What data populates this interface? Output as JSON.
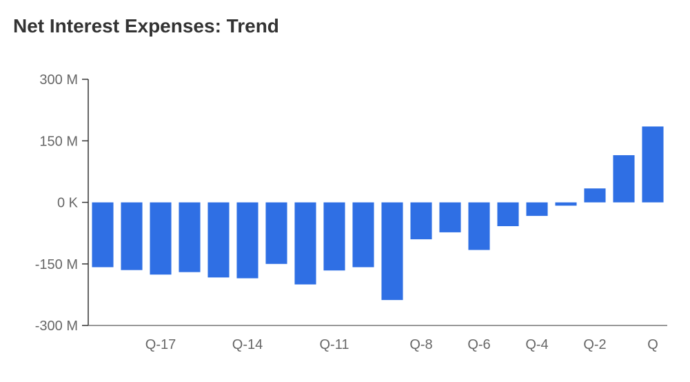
{
  "chart_data": {
    "type": "bar",
    "title": "Net Interest Expenses: Trend",
    "xlabel": "",
    "ylabel": "",
    "categories": [
      "Q-19",
      "Q-18",
      "Q-17",
      "Q-16",
      "Q-15",
      "Q-14",
      "Q-13",
      "Q-12",
      "Q-11",
      "Q-10",
      "Q-9",
      "Q-8",
      "Q-7",
      "Q-6",
      "Q-5",
      "Q-4",
      "Q-3",
      "Q-2",
      "Q-1",
      "Q"
    ],
    "x_tick_labels": [
      "",
      "",
      "Q-17",
      "",
      "",
      "Q-14",
      "",
      "",
      "Q-11",
      "",
      "",
      "Q-8",
      "",
      "Q-6",
      "",
      "Q-4",
      "",
      "Q-2",
      "",
      "Q"
    ],
    "series": [
      {
        "values": [
          -158,
          -165,
          -176,
          -170,
          -183,
          -185,
          -150,
          -200,
          -166,
          -158,
          -238,
          -90,
          -73,
          -116,
          -58,
          -33,
          -8,
          34,
          115,
          185
        ]
      }
    ],
    "unit": "M",
    "ylim": [
      -300,
      300
    ],
    "yticks": [
      300,
      150,
      0,
      -150,
      -300
    ],
    "ytick_labels": [
      "300 M",
      "150 M",
      "0 K",
      "-150 M",
      "-300 M"
    ],
    "bar_color": "#2f6fe4",
    "axis_color": "#333333",
    "grid": false,
    "legend": "none"
  }
}
